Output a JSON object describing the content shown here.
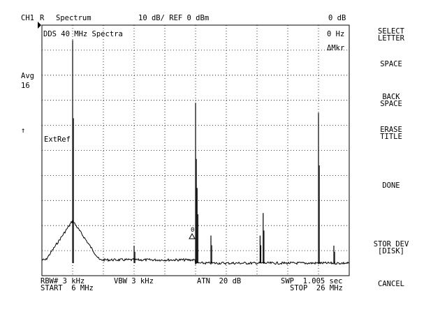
{
  "header": {
    "channel": "CH1",
    "measurement": "R",
    "mode": "Spectrum",
    "scale": "10 dB/ REF 0 dBm",
    "marker_level": "0 dB"
  },
  "screen": {
    "title": "DDS 40 MHz Spectra",
    "marker_freq": "0 Hz",
    "marker_mode": "ΔMkr",
    "avg_label": "Avg",
    "avg_count": "16",
    "ref_arrow": "↑",
    "ext_ref": "ExtRef",
    "marker_symbol": "0"
  },
  "footer": {
    "rbw": "RBW# 3 kHz",
    "vbw": "VBW 3 kHz",
    "atn": "ATN  20 dB",
    "swp": "SWP  1.005 sec",
    "start": "START  6 MHz",
    "stop": "STOP  26 MHz"
  },
  "softkeys": [
    {
      "label": "SELECT\nLETTER"
    },
    {
      "label": "SPACE"
    },
    {
      "label": "BACK\nSPACE"
    },
    {
      "label": "ERASE\nTITLE"
    },
    {
      "label": "DONE"
    },
    {
      "label": "STOR DEV\n[DISK]"
    },
    {
      "label": "CANCEL"
    }
  ],
  "chart_data": {
    "type": "line",
    "title": "DDS 40 MHz Spectra",
    "xlabel": "",
    "ylabel": "",
    "x_unit": "MHz",
    "y_unit": "dBm",
    "xlim": [
      6,
      26
    ],
    "ylim": [
      -100,
      0
    ],
    "grid": true,
    "noise_floor_low": -95,
    "noise_floor_high": -94,
    "noise_floor_step_mhz": 10,
    "series": [
      {
        "peaks_mhz": [
          8.0,
          12.0,
          16.0,
          16.1,
          17.0,
          20.2,
          20.4,
          24.0,
          25.0
        ],
        "peaks_dbm": [
          -6,
          -88,
          -31,
          -65,
          -84,
          -84,
          -75,
          -35,
          -88
        ]
      }
    ]
  }
}
